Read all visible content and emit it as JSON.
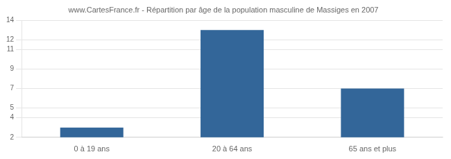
{
  "chart_data": {
    "type": "bar",
    "title": "www.CartesFrance.fr - Répartition par âge de la population masculine de Massiges en 2007",
    "categories": [
      "0 à 19 ans",
      "20 à 64 ans",
      "65 ans et plus"
    ],
    "values": [
      3,
      13,
      7
    ],
    "color": "#336699",
    "ylim": [
      2,
      14
    ],
    "yticks": [
      2,
      4,
      5,
      7,
      9,
      11,
      12,
      14
    ],
    "grid": true
  }
}
